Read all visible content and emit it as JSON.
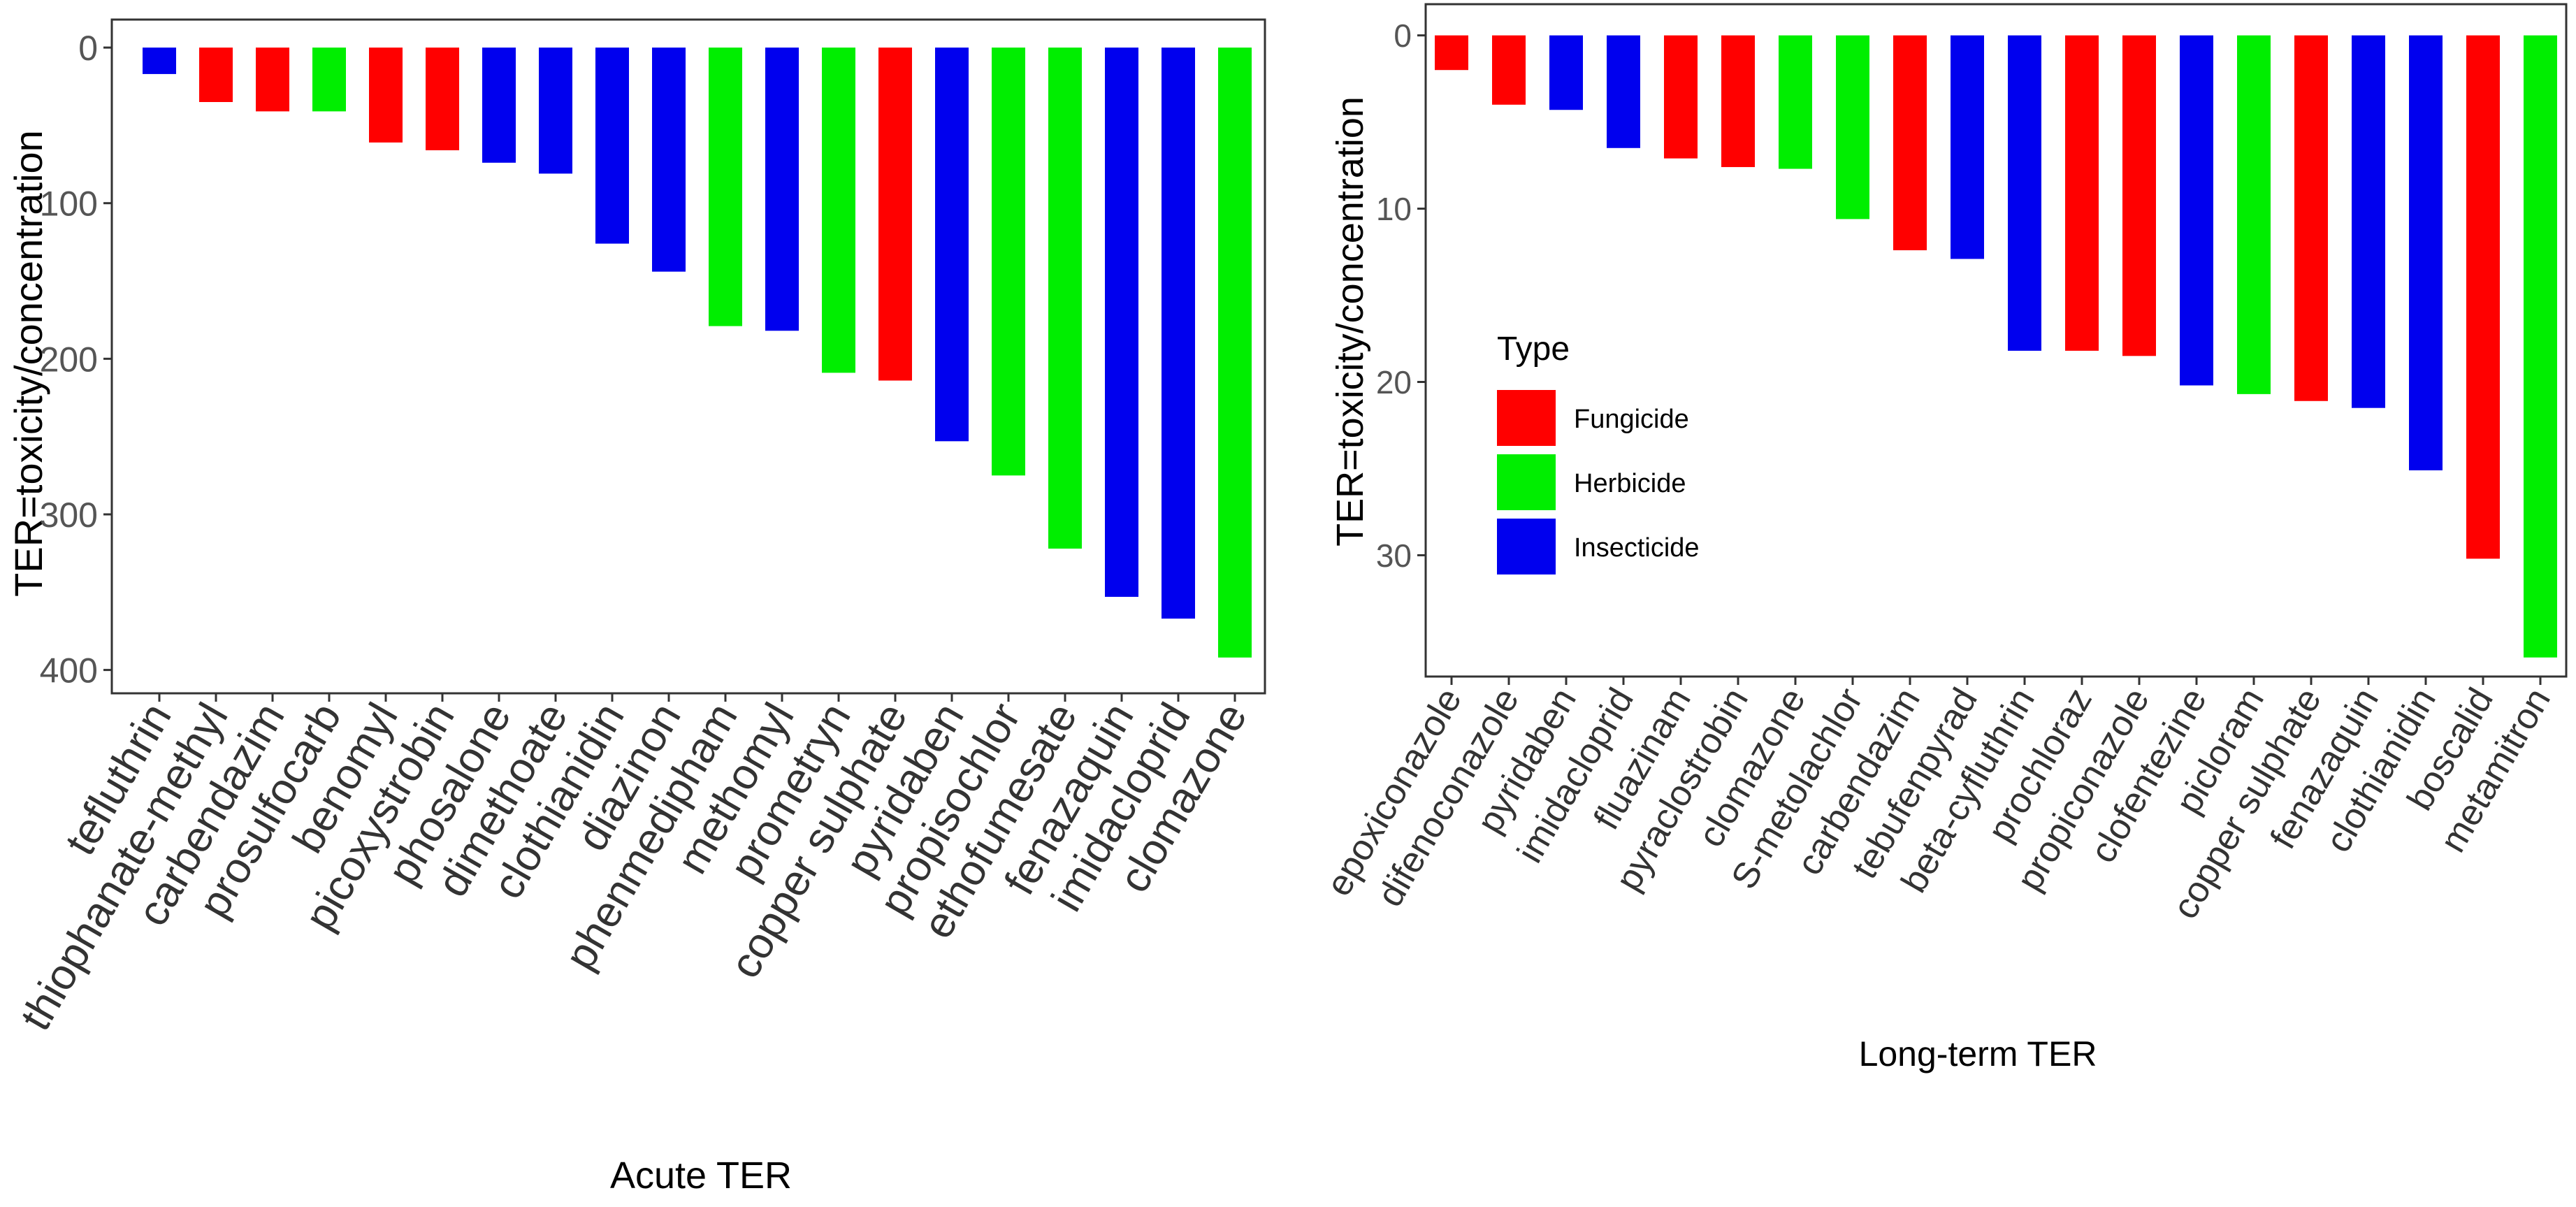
{
  "colors": {
    "Fungicide": "#ff0000",
    "Herbicide": "#00ee00",
    "Insecticide": "#0000ee"
  },
  "legend": {
    "title": "Type",
    "items": [
      "Fungicide",
      "Herbicide",
      "Insecticide"
    ]
  },
  "chart_data": [
    {
      "type": "bar",
      "title": "",
      "xlabel": "Acute TER",
      "ylabel": "TER=toxicity/concentration",
      "y_reversed": true,
      "ylim": [
        -18,
        415
      ],
      "yticks": [
        0,
        100,
        200,
        300,
        400
      ],
      "grid": false,
      "categories": [
        "tefluthrin",
        "thiophanate-methyl",
        "carbendazim",
        "prosulfocarb",
        "benomyl",
        "picoxystrobin",
        "phosalone",
        "dimethoate",
        "clothianidin",
        "diazinon",
        "phenmedipham",
        "methomyl",
        "prometryn",
        "copper sulphate",
        "pyridaben",
        "propisochlor",
        "ethofumesate",
        "fenazaquin",
        "imidacloprid",
        "clomazone"
      ],
      "types": [
        "Insecticide",
        "Fungicide",
        "Fungicide",
        "Herbicide",
        "Fungicide",
        "Fungicide",
        "Insecticide",
        "Insecticide",
        "Insecticide",
        "Insecticide",
        "Herbicide",
        "Insecticide",
        "Herbicide",
        "Fungicide",
        "Insecticide",
        "Herbicide",
        "Herbicide",
        "Insecticide",
        "Insecticide",
        "Herbicide"
      ],
      "values": [
        17,
        35,
        41,
        41,
        61,
        66,
        74,
        81,
        126,
        144,
        179,
        182,
        209,
        214,
        253,
        275,
        322,
        353,
        367,
        392
      ]
    },
    {
      "type": "bar",
      "title": "",
      "xlabel": "Long-term TER",
      "ylabel": "TER=toxicity/concentration",
      "y_reversed": true,
      "ylim": [
        -1.8,
        37
      ],
      "yticks": [
        0,
        10,
        20,
        30
      ],
      "grid": false,
      "legend": "left-center",
      "categories": [
        "epoxiconazole",
        "difenoconazole",
        "pyridaben",
        "imidacloprid",
        "fluazinam",
        "pyraclostrobin",
        "clomazone",
        "S-metolachlor",
        "carbendazim",
        "tebufenpyrad",
        "beta-cyfluthrin",
        "prochloraz",
        "propiconazole",
        "clofentezine",
        "picloram",
        "copper sulphate",
        "fenazaquin",
        "clothianidin",
        "boscalid",
        "metamitron"
      ],
      "types": [
        "Fungicide",
        "Fungicide",
        "Insecticide",
        "Insecticide",
        "Fungicide",
        "Fungicide",
        "Herbicide",
        "Herbicide",
        "Fungicide",
        "Insecticide",
        "Insecticide",
        "Fungicide",
        "Fungicide",
        "Insecticide",
        "Herbicide",
        "Fungicide",
        "Insecticide",
        "Insecticide",
        "Fungicide",
        "Herbicide"
      ],
      "values": [
        2.0,
        4.0,
        4.3,
        6.5,
        7.1,
        7.6,
        7.7,
        10.6,
        12.4,
        12.9,
        18.2,
        18.2,
        18.5,
        20.2,
        20.7,
        21.1,
        21.5,
        25.1,
        30.2,
        35.9
      ]
    }
  ]
}
